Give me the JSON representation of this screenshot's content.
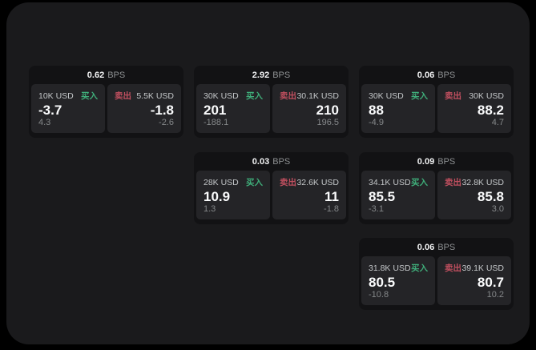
{
  "labels": {
    "bps_unit": "BPS",
    "buy": "买入",
    "sell": "卖出"
  },
  "colors": {
    "background": "#000000",
    "surface": "#1a1a1c",
    "card": "#121214",
    "panel": "#242427",
    "buy_accent": "#3fae7a",
    "sell_accent": "#c04f5f"
  },
  "cards": [
    {
      "bps": "0.62",
      "col": 0,
      "row": 0,
      "buy": {
        "amount": "10K USD",
        "price": "-3.7",
        "delta": "4.3"
      },
      "sell": {
        "amount": "5.5K USD",
        "price": "-1.8",
        "delta": "-2.6"
      }
    },
    {
      "bps": "2.92",
      "col": 1,
      "row": 0,
      "buy": {
        "amount": "30K USD",
        "price": "201",
        "delta": "-188.1"
      },
      "sell": {
        "amount": "30.1K USD",
        "price": "210",
        "delta": "196.5"
      }
    },
    {
      "bps": "0.06",
      "col": 2,
      "row": 0,
      "buy": {
        "amount": "30K USD",
        "price": "88",
        "delta": "-4.9"
      },
      "sell": {
        "amount": "30K USD",
        "price": "88.2",
        "delta": "4.7"
      }
    },
    {
      "bps": "0.03",
      "col": 1,
      "row": 1,
      "buy": {
        "amount": "28K USD",
        "price": "10.9",
        "delta": "1.3"
      },
      "sell": {
        "amount": "32.6K USD",
        "price": "11",
        "delta": "-1.8"
      }
    },
    {
      "bps": "0.09",
      "col": 2,
      "row": 1,
      "buy": {
        "amount": "34.1K USD",
        "price": "85.5",
        "delta": "-3.1"
      },
      "sell": {
        "amount": "32.8K USD",
        "price": "85.8",
        "delta": "3.0"
      }
    },
    {
      "bps": "0.06",
      "col": 2,
      "row": 2,
      "buy": {
        "amount": "31.8K USD",
        "price": "80.5",
        "delta": "-10.8"
      },
      "sell": {
        "amount": "39.1K USD",
        "price": "80.7",
        "delta": "10.2"
      }
    }
  ]
}
